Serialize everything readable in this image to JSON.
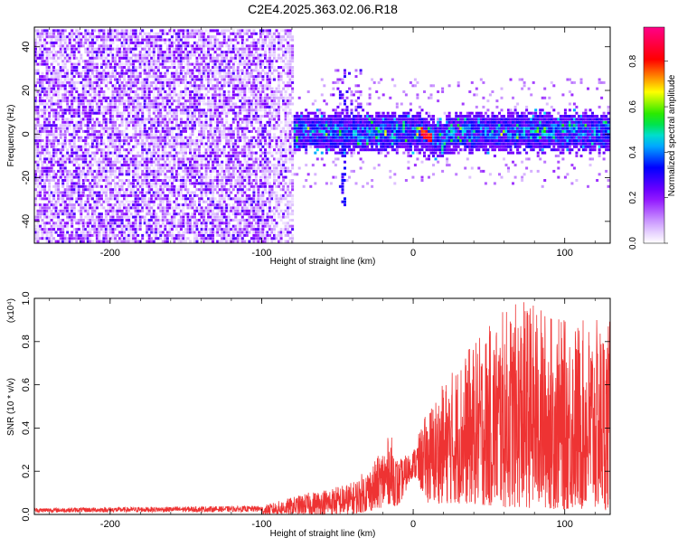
{
  "title": "C2E4.2025.363.02.06.R18",
  "chart_data": [
    {
      "type": "heatmap",
      "xlabel": "Height of straight line (km)",
      "ylabel": "Frequency (Hz)",
      "xlim": [
        -250,
        130
      ],
      "ylim": [
        -50,
        49
      ],
      "xticks": [
        -200,
        -100,
        0,
        100
      ],
      "yticks": [
        -40,
        -20,
        0,
        20,
        40
      ],
      "colorbar": {
        "label": "Normalized spectral amplitude",
        "range": [
          0,
          0.95
        ],
        "ticks": [
          0.0,
          0.2,
          0.4,
          0.6,
          0.8
        ],
        "colors": [
          "#ffffff",
          "#8800ff",
          "#0000ff",
          "#00ddff",
          "#00ff00",
          "#ffff00",
          "#ff0000",
          "#ff0088"
        ]
      },
      "regions": [
        {
          "x_start": -250,
          "x_end": -80,
          "description_values": "broadband noise up to 0.3 across all frequencies"
        },
        {
          "x_start": -80,
          "x_end": 130,
          "description_values": "concentrated band around 0 Hz, peak 0.9 near x=8"
        }
      ]
    },
    {
      "type": "line",
      "xlabel": "Height of straight line (km)",
      "ylabel": "SNR (10 * v/v)",
      "multiplier": "(x10⁴)",
      "xlim": [
        -250,
        130
      ],
      "ylim": [
        0,
        1.0
      ],
      "xticks": [
        -200,
        -100,
        0,
        100
      ],
      "yticks": [
        0.0,
        0.2,
        0.4,
        0.6,
        0.8,
        1.0
      ],
      "series": [
        {
          "color": "#ee3333",
          "envelope": [
            {
              "x": -250,
              "low": 0.0,
              "high": 0.03
            },
            {
              "x": -100,
              "low": 0.0,
              "high": 0.04
            },
            {
              "x": -70,
              "low": 0.0,
              "high": 0.1
            },
            {
              "x": -40,
              "low": 0.0,
              "high": 0.15
            },
            {
              "x": -25,
              "low": 0.02,
              "high": 0.25
            },
            {
              "x": -15,
              "low": 0.05,
              "high": 0.38
            },
            {
              "x": -10,
              "low": 0.03,
              "high": 0.25
            },
            {
              "x": 0,
              "low": 0.18,
              "high": 0.3
            },
            {
              "x": 10,
              "low": 0.05,
              "high": 0.5
            },
            {
              "x": 30,
              "low": 0.05,
              "high": 0.72
            },
            {
              "x": 60,
              "low": 0.03,
              "high": 0.95
            },
            {
              "x": 75,
              "low": 0.03,
              "high": 1.0
            },
            {
              "x": 100,
              "low": 0.02,
              "high": 0.9
            },
            {
              "x": 130,
              "low": 0.02,
              "high": 0.9
            }
          ]
        }
      ]
    }
  ]
}
